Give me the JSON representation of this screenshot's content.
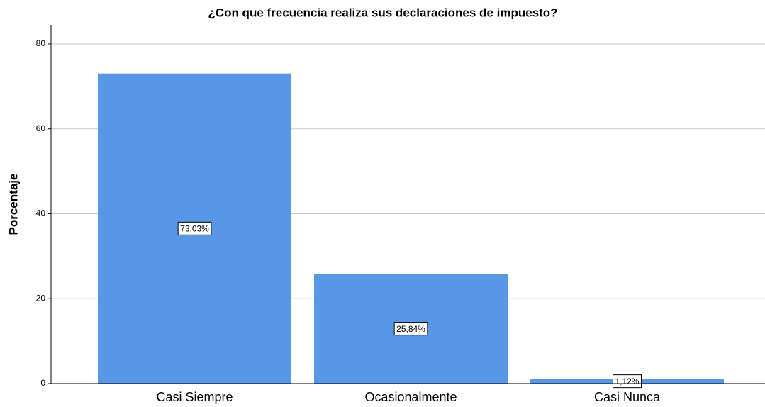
{
  "chart_data": {
    "type": "bar",
    "title": "¿Con que frecuencia realiza sus declaraciones de impuesto?",
    "y_label": "Porcentaje",
    "categories": [
      "Casi Siempre",
      "Ocasionalmente",
      "Casi Nunca"
    ],
    "values": [
      73.03,
      25.84,
      1.12
    ],
    "value_labels": [
      "73,03%",
      "25,84%",
      "1,12%"
    ],
    "color": "#5896e6",
    "ylim": [
      0,
      84.5
    ],
    "yticks": [
      0,
      20,
      40,
      60,
      80
    ],
    "grid": true
  }
}
